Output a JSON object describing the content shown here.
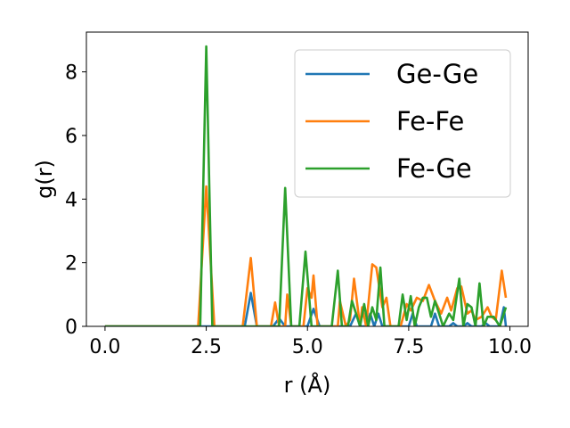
{
  "chart_data": {
    "type": "line",
    "xlabel": "r (Å)",
    "ylabel": "g(r)",
    "xlim": [
      -0.46,
      10.45
    ],
    "ylim": [
      0,
      9.25
    ],
    "xticks": [
      0.0,
      2.5,
      5.0,
      7.5,
      10.0
    ],
    "xtick_labels": [
      "0.0",
      "2.5",
      "5.0",
      "7.5",
      "10.0"
    ],
    "yticks": [
      0,
      2,
      4,
      6,
      8
    ],
    "ytick_labels": [
      "0",
      "2",
      "4",
      "6",
      "8"
    ],
    "grid": false,
    "legend_position": "top-right",
    "series": [
      {
        "name": "Ge-Ge",
        "color": "#1f77b4",
        "points": [
          [
            0,
            0
          ],
          [
            3.45,
            0
          ],
          [
            3.6,
            1.05
          ],
          [
            3.75,
            0
          ],
          [
            4.15,
            0
          ],
          [
            4.3,
            0.25
          ],
          [
            4.45,
            0
          ],
          [
            5.0,
            0
          ],
          [
            5.15,
            0.55
          ],
          [
            5.3,
            0
          ],
          [
            6.05,
            0
          ],
          [
            6.2,
            0.4
          ],
          [
            6.3,
            0
          ],
          [
            6.45,
            0
          ],
          [
            6.55,
            0.4
          ],
          [
            6.65,
            0
          ],
          [
            6.75,
            0.4
          ],
          [
            6.85,
            0
          ],
          [
            7.5,
            0
          ],
          [
            7.6,
            0.4
          ],
          [
            7.7,
            0
          ],
          [
            8.05,
            0
          ],
          [
            8.15,
            0.4
          ],
          [
            8.25,
            0
          ],
          [
            8.5,
            0
          ],
          [
            8.6,
            0.1
          ],
          [
            8.7,
            0
          ],
          [
            8.85,
            0
          ],
          [
            8.95,
            0.1
          ],
          [
            9.05,
            0
          ],
          [
            9.3,
            0
          ],
          [
            9.4,
            0.1
          ],
          [
            9.5,
            0
          ],
          [
            9.75,
            0
          ],
          [
            9.85,
            0.6
          ],
          [
            9.9,
            0
          ]
        ]
      },
      {
        "name": "Fe-Fe",
        "color": "#ff7f0e",
        "points": [
          [
            0,
            0
          ],
          [
            2.3,
            0
          ],
          [
            2.5,
            4.4
          ],
          [
            2.7,
            0
          ],
          [
            3.4,
            0
          ],
          [
            3.6,
            2.15
          ],
          [
            3.75,
            0
          ],
          [
            4.1,
            0
          ],
          [
            4.2,
            0.75
          ],
          [
            4.3,
            0
          ],
          [
            4.45,
            0
          ],
          [
            4.5,
            1.0
          ],
          [
            4.6,
            0
          ],
          [
            4.9,
            0
          ],
          [
            5.0,
            1.2
          ],
          [
            5.1,
            0.9
          ],
          [
            5.15,
            1.6
          ],
          [
            5.25,
            0
          ],
          [
            5.75,
            0
          ],
          [
            5.8,
            0.8
          ],
          [
            5.95,
            0
          ],
          [
            6.05,
            0.2
          ],
          [
            6.15,
            1.5
          ],
          [
            6.3,
            0
          ],
          [
            6.35,
            0.6
          ],
          [
            6.45,
            0
          ],
          [
            6.6,
            1.95
          ],
          [
            6.7,
            1.85
          ],
          [
            6.85,
            0.6
          ],
          [
            6.95,
            0.9
          ],
          [
            7.05,
            0
          ],
          [
            7.3,
            0
          ],
          [
            7.45,
            0.7
          ],
          [
            7.55,
            0.5
          ],
          [
            7.7,
            0.9
          ],
          [
            7.85,
            0.8
          ],
          [
            8.0,
            1.3
          ],
          [
            8.15,
            0.8
          ],
          [
            8.3,
            0.4
          ],
          [
            8.45,
            0.9
          ],
          [
            8.55,
            0.5
          ],
          [
            8.7,
            1.2
          ],
          [
            8.8,
            1.25
          ],
          [
            8.95,
            0.4
          ],
          [
            9.05,
            0.5
          ],
          [
            9.15,
            0.2
          ],
          [
            9.3,
            0.3
          ],
          [
            9.45,
            0.6
          ],
          [
            9.55,
            0.3
          ],
          [
            9.65,
            0.2
          ],
          [
            9.8,
            1.75
          ],
          [
            9.9,
            0.9
          ]
        ]
      },
      {
        "name": "Fe-Ge",
        "color": "#2ca02c",
        "points": [
          [
            0,
            0
          ],
          [
            2.35,
            0
          ],
          [
            2.5,
            8.8
          ],
          [
            2.65,
            0
          ],
          [
            4.3,
            0
          ],
          [
            4.45,
            4.35
          ],
          [
            4.6,
            0
          ],
          [
            4.8,
            0
          ],
          [
            4.95,
            2.35
          ],
          [
            5.1,
            0
          ],
          [
            5.6,
            0
          ],
          [
            5.75,
            1.75
          ],
          [
            5.85,
            0
          ],
          [
            6.0,
            0
          ],
          [
            6.1,
            0.8
          ],
          [
            6.2,
            0.4
          ],
          [
            6.3,
            0
          ],
          [
            6.4,
            0.7
          ],
          [
            6.5,
            0
          ],
          [
            6.6,
            0.6
          ],
          [
            6.7,
            0.2
          ],
          [
            6.8,
            1.85
          ],
          [
            6.9,
            0
          ],
          [
            7.25,
            0
          ],
          [
            7.35,
            1.0
          ],
          [
            7.45,
            0.2
          ],
          [
            7.55,
            0.95
          ],
          [
            7.65,
            0
          ],
          [
            7.75,
            0.6
          ],
          [
            7.85,
            0.9
          ],
          [
            7.95,
            0.9
          ],
          [
            8.05,
            0.3
          ],
          [
            8.15,
            0.8
          ],
          [
            8.25,
            0.4
          ],
          [
            8.35,
            0
          ],
          [
            8.5,
            0.4
          ],
          [
            8.6,
            0.2
          ],
          [
            8.75,
            1.5
          ],
          [
            8.85,
            0
          ],
          [
            8.95,
            0.7
          ],
          [
            9.05,
            0.6
          ],
          [
            9.15,
            0
          ],
          [
            9.25,
            1.35
          ],
          [
            9.35,
            0
          ],
          [
            9.45,
            0.3
          ],
          [
            9.6,
            0.3
          ],
          [
            9.75,
            0
          ],
          [
            9.9,
            0.6
          ]
        ]
      }
    ]
  }
}
